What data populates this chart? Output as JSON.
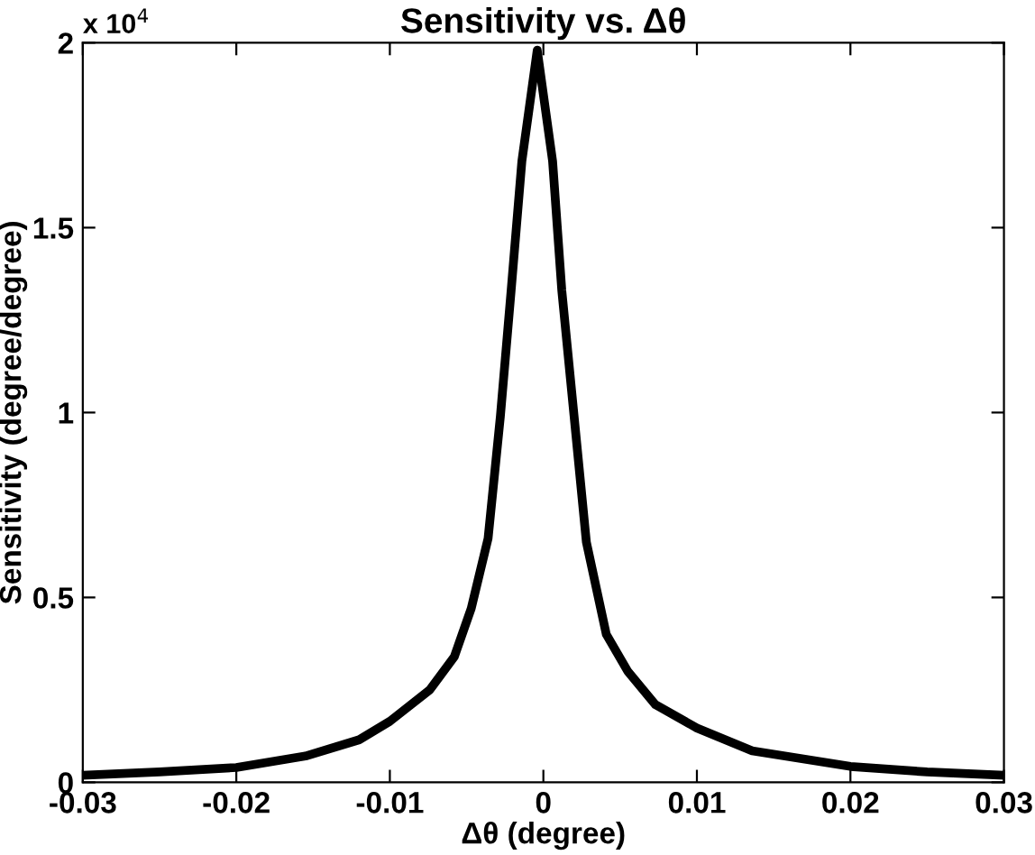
{
  "chart_data": {
    "type": "line",
    "title": "Sensitivity vs. Δθ",
    "xlabel": "Δθ (degree)",
    "ylabel": "Sensitivity (degree/degree)",
    "annotations": [
      "x 10$^{4}$"
    ],
    "series": [
      {
        "color": "#000000",
        "x": [
          -0.03,
          -0.025,
          -0.02,
          -0.0155,
          -0.012,
          -0.01,
          -0.0074,
          -0.0058,
          -0.0047,
          -0.0036,
          -0.0028,
          -0.0021,
          -0.0014,
          -0.0004,
          0.0006,
          0.0012,
          0.002,
          0.0028,
          0.0041,
          0.0055,
          0.0073,
          0.01,
          0.0136,
          0.02,
          0.025,
          0.03
        ],
        "values": [
          0.019,
          0.028,
          0.04,
          0.071,
          0.115,
          0.165,
          0.25,
          0.34,
          0.47,
          0.66,
          0.99,
          1.33,
          1.68,
          1.98,
          1.68,
          1.33,
          0.99,
          0.65,
          0.4,
          0.3,
          0.21,
          0.147,
          0.085,
          0.043,
          0.028,
          0.019
        ]
      }
    ],
    "xlim": [
      -0.03,
      0.03
    ],
    "ylim": [
      0,
      2
    ],
    "xticks": [
      -0.03,
      -0.02,
      -0.01,
      0,
      0.01,
      0.02,
      0.03
    ],
    "yticks": [
      0,
      0.5,
      1,
      1.5,
      2
    ],
    "grid": false,
    "legend": false,
    "marker": "none",
    "line_style": "solid"
  }
}
